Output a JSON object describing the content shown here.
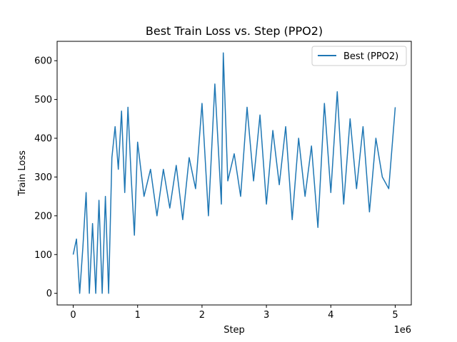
{
  "chart_data": {
    "type": "line",
    "title": "Best Train Loss vs. Step (PPO2)",
    "xlabel": "Step",
    "ylabel": "Train Loss",
    "x_offset_label": "1e6",
    "xlim": [
      -250000,
      5250000
    ],
    "ylim": [
      -30,
      650
    ],
    "xticks": [
      0,
      1000000,
      2000000,
      3000000,
      4000000,
      5000000
    ],
    "xtick_labels": [
      "0",
      "1",
      "2",
      "3",
      "4",
      "5"
    ],
    "yticks": [
      0,
      100,
      200,
      300,
      400,
      500,
      600
    ],
    "ytick_labels": [
      "0",
      "100",
      "200",
      "300",
      "400",
      "500",
      "600"
    ],
    "grid": false,
    "legend_position": "top-right",
    "series": [
      {
        "name": "Best (PPO2)",
        "color": "#1f77b4",
        "x": [
          0,
          50000,
          100000,
          150000,
          200000,
          250000,
          300000,
          350000,
          400000,
          450000,
          500000,
          550000,
          600000,
          650000,
          700000,
          750000,
          800000,
          850000,
          900000,
          950000,
          1000000,
          1100000,
          1200000,
          1300000,
          1400000,
          1500000,
          1600000,
          1700000,
          1800000,
          1900000,
          2000000,
          2100000,
          2200000,
          2300000,
          2330000,
          2400000,
          2500000,
          2600000,
          2700000,
          2800000,
          2900000,
          3000000,
          3100000,
          3200000,
          3300000,
          3400000,
          3500000,
          3600000,
          3700000,
          3800000,
          3900000,
          4000000,
          4100000,
          4200000,
          4300000,
          4400000,
          4500000,
          4600000,
          4700000,
          4800000,
          4900000,
          5000000
        ],
        "y": [
          100,
          140,
          0,
          120,
          260,
          0,
          180,
          0,
          240,
          0,
          250,
          0,
          350,
          430,
          320,
          470,
          260,
          480,
          300,
          150,
          390,
          250,
          320,
          200,
          320,
          220,
          330,
          190,
          350,
          270,
          490,
          200,
          540,
          230,
          620,
          290,
          360,
          250,
          480,
          290,
          460,
          230,
          420,
          280,
          430,
          190,
          400,
          250,
          380,
          170,
          490,
          260,
          520,
          230,
          450,
          270,
          430,
          210,
          400,
          300,
          270,
          480
        ]
      }
    ]
  }
}
